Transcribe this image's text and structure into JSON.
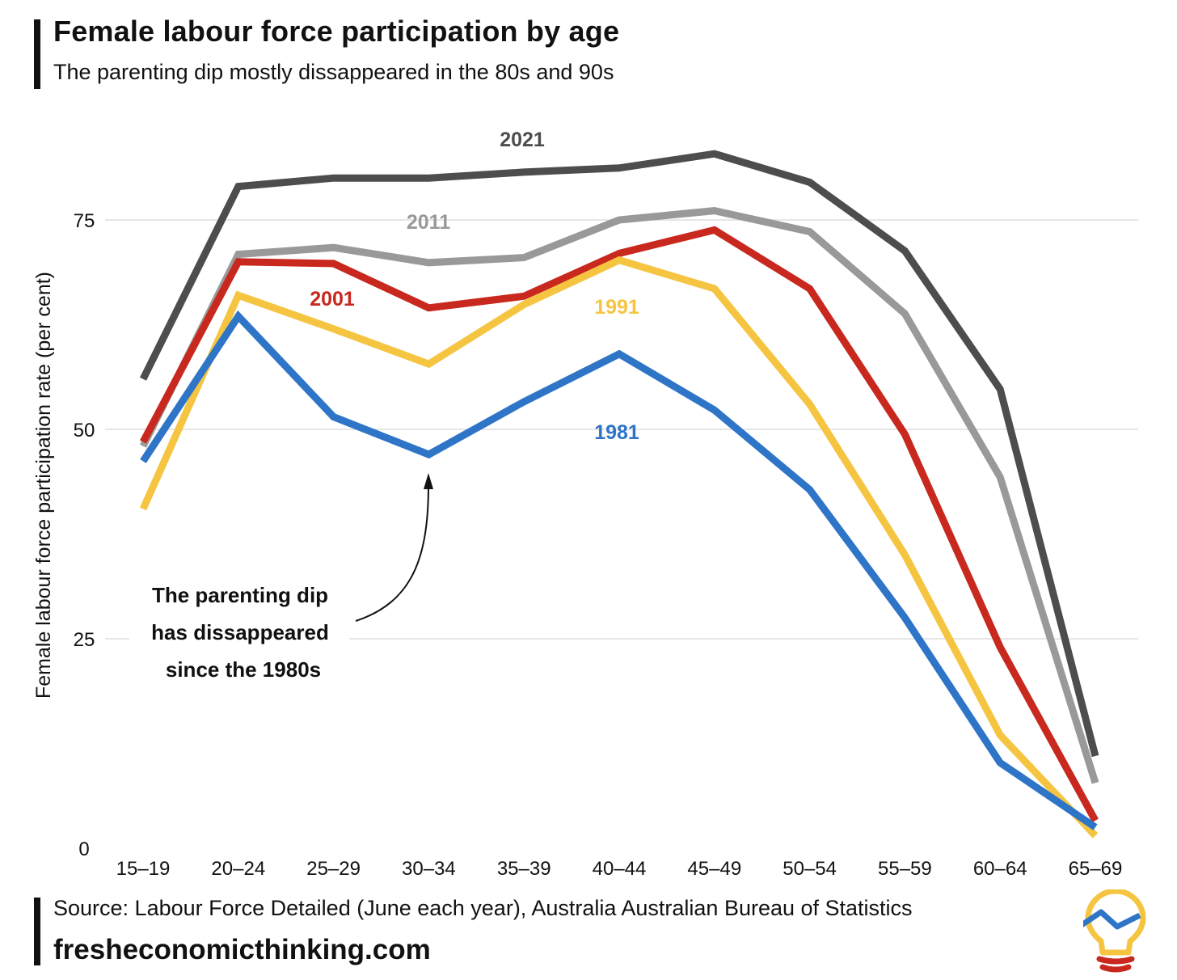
{
  "header": {
    "title": "Female labour force participation by age",
    "subtitle": "The parenting dip mostly dissappeared in the 80s and 90s"
  },
  "footer": {
    "source": "Source: Labour Force Detailed (June each year), Australia Australian Bureau of Statistics",
    "website": "fresheconomicthinking.com"
  },
  "annotation": {
    "lines": [
      "The parenting dip",
      "has dissappeared",
      "since the 1980s"
    ]
  },
  "chart_data": {
    "type": "line",
    "title": "Female labour force participation by age",
    "subtitle": "The parenting dip mostly dissappeared in the 80s and 90s",
    "xlabel": "",
    "ylabel": "Female labour force participation rate (per cent)",
    "ylim": [
      0,
      85
    ],
    "yticks": [
      0,
      25,
      50,
      75
    ],
    "grid": "horizontal",
    "categories": [
      "15–19",
      "20–24",
      "25–29",
      "30–34",
      "35–39",
      "40–44",
      "45–49",
      "50–54",
      "55–59",
      "60–64",
      "65–69"
    ],
    "series": [
      {
        "name": "2021",
        "color": "#4d4d4d",
        "values": [
          56.0,
          79.0,
          80.0,
          80.0,
          80.7,
          81.2,
          82.9,
          79.5,
          71.3,
          54.8,
          11.0
        ]
      },
      {
        "name": "2011",
        "color": "#999999",
        "values": [
          48.0,
          70.9,
          71.7,
          69.9,
          70.5,
          75.0,
          76.1,
          73.6,
          63.8,
          44.3,
          7.8
        ]
      },
      {
        "name": "2001",
        "color": "#c8281e",
        "values": [
          48.5,
          70.0,
          69.8,
          64.5,
          65.9,
          71.0,
          73.8,
          66.8,
          49.4,
          24.0,
          3.3
        ]
      },
      {
        "name": "1991",
        "color": "#f5c542",
        "values": [
          40.5,
          66.0,
          62.0,
          57.8,
          64.9,
          70.2,
          66.8,
          53.0,
          35.0,
          13.5,
          1.5
        ]
      },
      {
        "name": "1981",
        "color": "#2e75c8",
        "values": [
          46.2,
          63.5,
          51.5,
          47.0,
          53.3,
          59.0,
          52.3,
          42.8,
          27.5,
          10.2,
          2.5
        ]
      }
    ]
  }
}
